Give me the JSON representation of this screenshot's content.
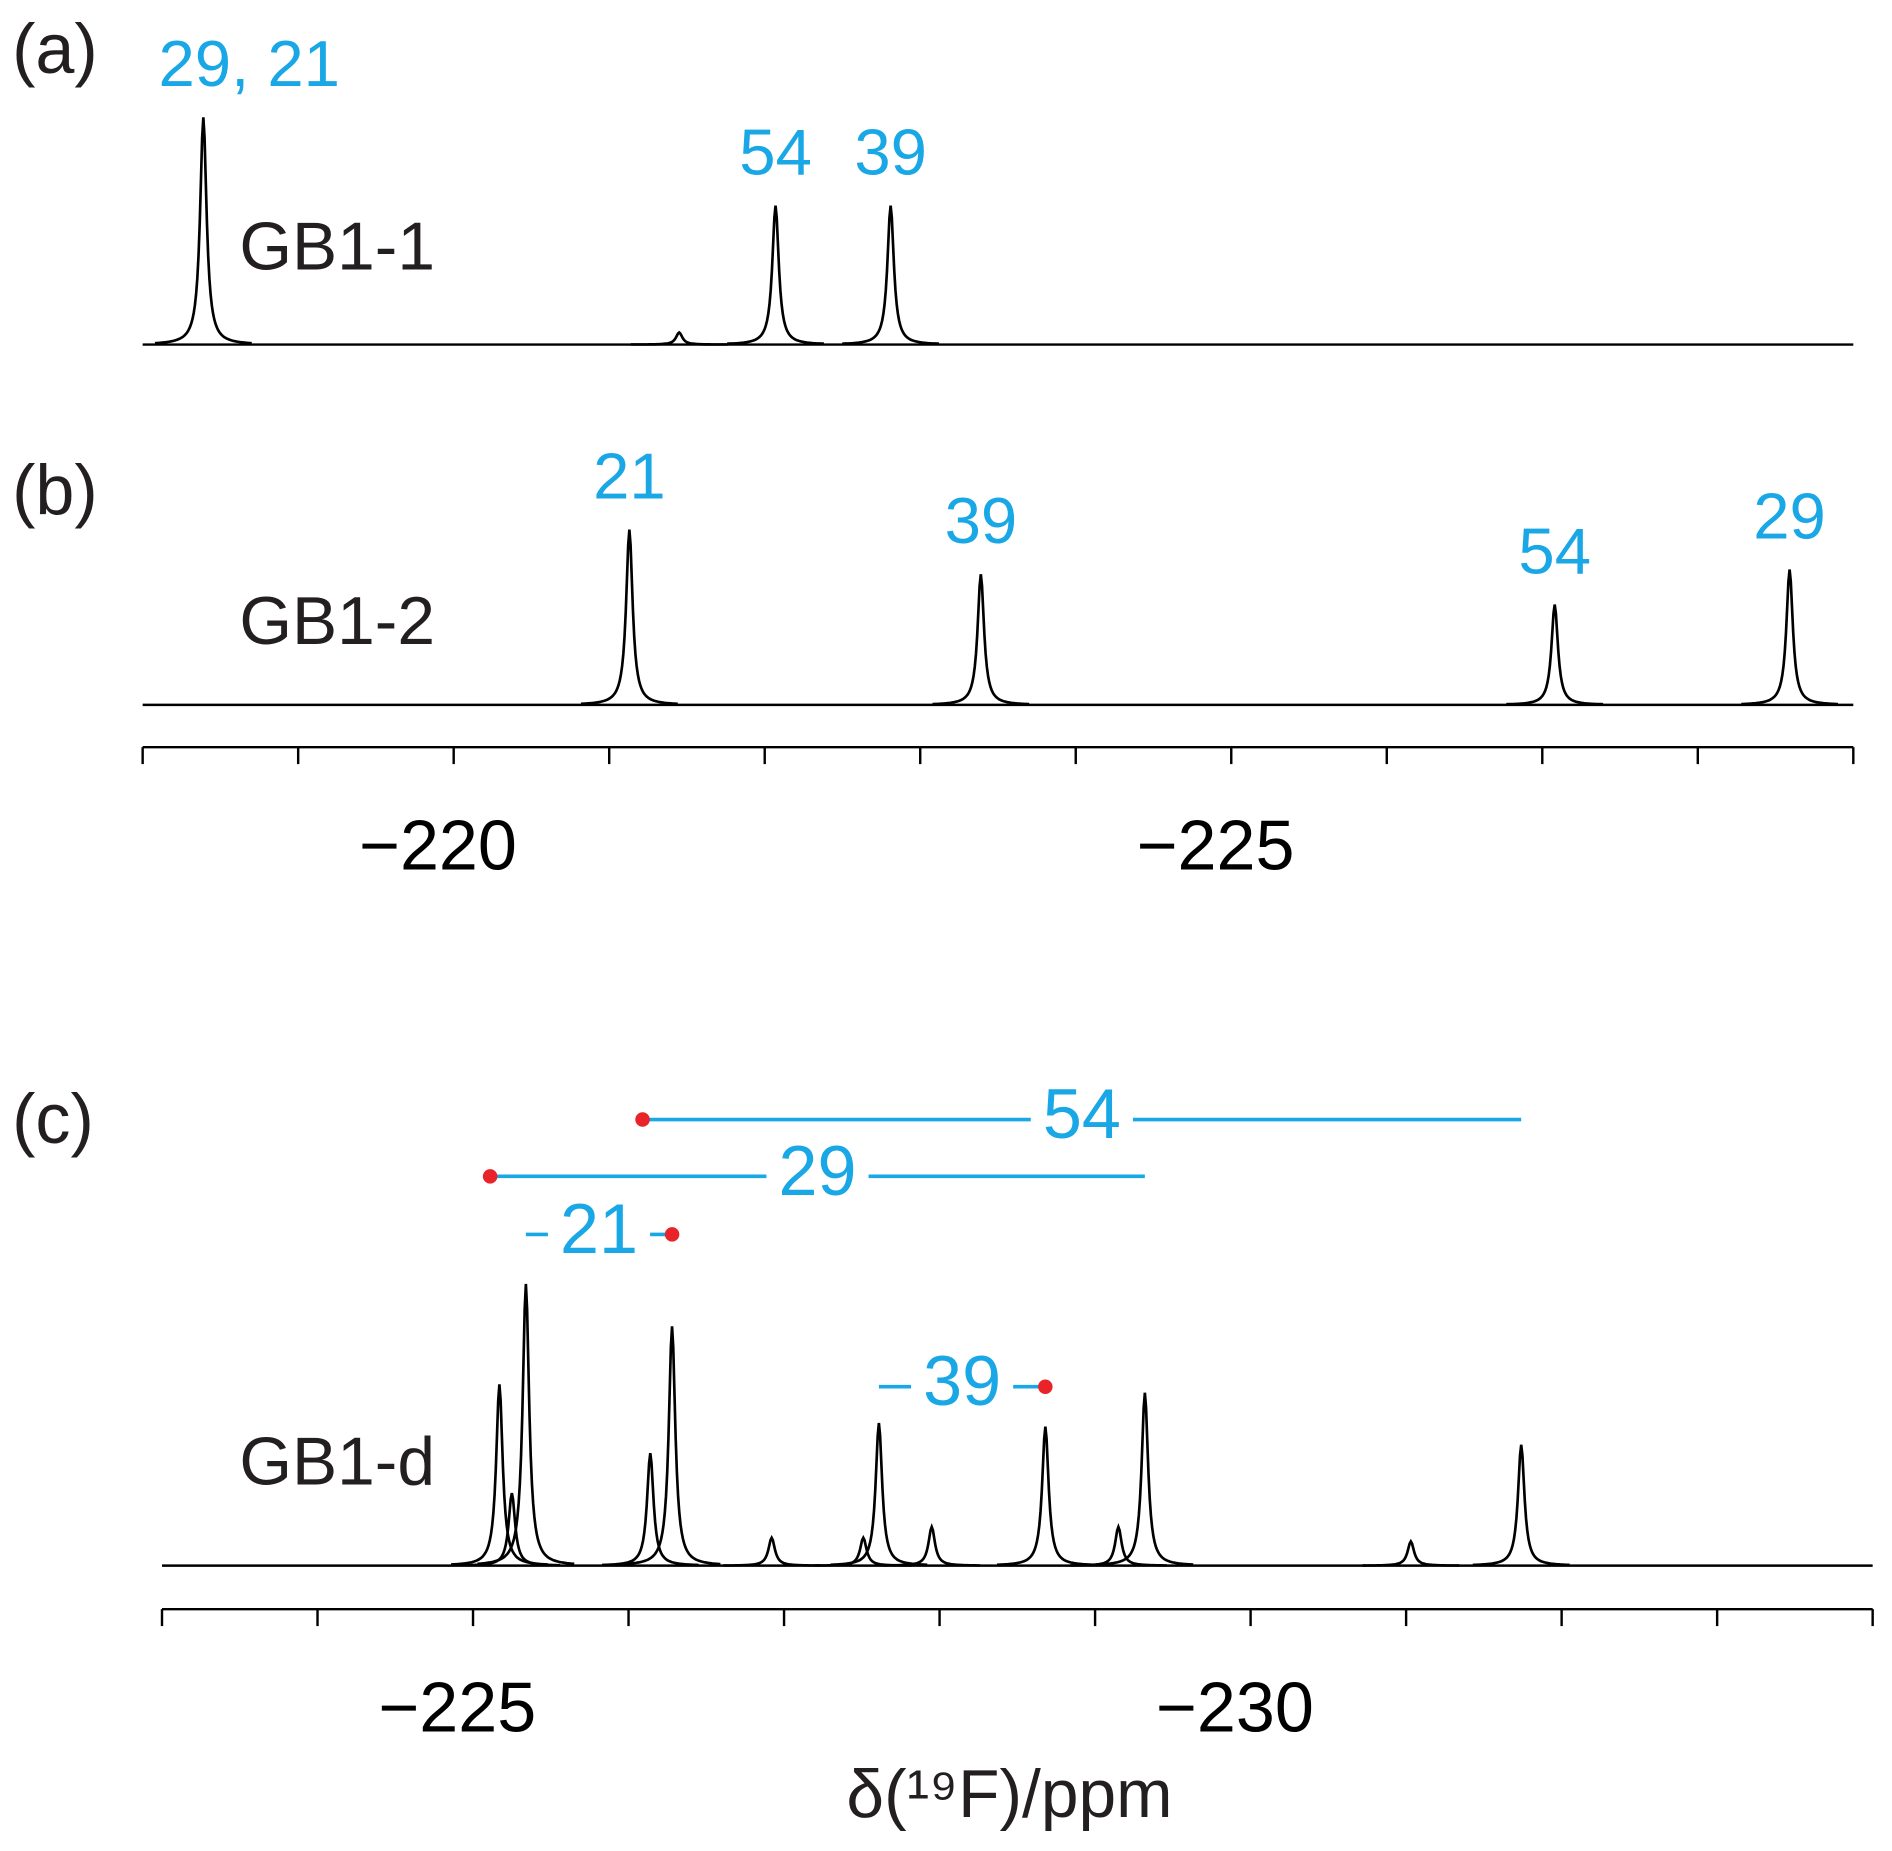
{
  "chart_data": [
    {
      "type": "spectrum",
      "panel": "(a)",
      "sample": "GB1-1",
      "color": "#000000",
      "label_color": "#1aa7e6",
      "x": [
        -218.39,
        -221.45,
        -222.07,
        -222.81
      ],
      "values": [
        188,
        10,
        115,
        115
      ],
      "labels": [
        "29, 21",
        null,
        "54",
        "39"
      ],
      "xlim": [
        -218,
        -229
      ],
      "ylim": [
        0,
        200
      ]
    },
    {
      "type": "spectrum",
      "panel": "(b)",
      "sample": "GB1-2",
      "color": "#000000",
      "label_color": "#1aa7e6",
      "x": [
        -221.13,
        -223.39,
        -227.08,
        -228.59
      ],
      "values": [
        145,
        108,
        83,
        112
      ],
      "labels": [
        "21",
        "39",
        "54",
        "29"
      ],
      "xlim": [
        -218,
        -229
      ],
      "ylim": [
        0,
        200
      ],
      "xticks": [
        {
          "value": -220,
          "label": "−220"
        },
        {
          "value": -225,
          "label": "−225"
        }
      ],
      "xminor_ticks": [
        -218,
        -219,
        -221,
        -222,
        -223,
        -224,
        -226,
        -227,
        -228,
        -229
      ]
    },
    {
      "type": "spectrum",
      "panel": "(c)",
      "sample": "GB1-d",
      "color": "#000000",
      "label_color": "#1aa7e6",
      "dot_color": "#e8232a",
      "x": [
        -225.17,
        -225.25,
        -225.34,
        -226.14,
        -226.28,
        -226.92,
        -227.51,
        -227.61,
        -227.95,
        -228.68,
        -229.15,
        -229.32,
        -231.03,
        -231.74
      ],
      "values": [
        150,
        60,
        233,
        93,
        198,
        23,
        23,
        118,
        32,
        115,
        32,
        143,
        20,
        100
      ],
      "xlim": [
        -223,
        -234
      ],
      "ylim": [
        0,
        250
      ],
      "xticks": [
        {
          "value": -225,
          "label": "−225"
        },
        {
          "value": -230,
          "label": "−230"
        }
      ],
      "xminor_ticks": [
        -223,
        -224,
        -226,
        -227,
        -228,
        -229,
        -231,
        -232,
        -233,
        -234
      ],
      "xlabel": "δ(¹⁹F)/ppm",
      "annotations": [
        {
          "text": "54",
          "x": [
            -226.09,
            -231.74
          ]
        },
        {
          "text": "29",
          "x": [
            -225.11,
            -229.32
          ]
        },
        {
          "text": "21",
          "x": [
            -226.28,
            -225.34
          ]
        },
        {
          "text": "39",
          "x": [
            -228.68,
            -227.61
          ]
        }
      ]
    }
  ]
}
